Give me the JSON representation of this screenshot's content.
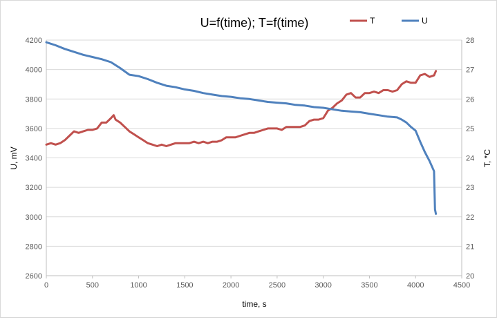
{
  "chart_data": {
    "type": "line",
    "title": "U=f(time);  T=f(time)",
    "xlabel": "time, s",
    "ylabel_left": "U, mV",
    "ylabel_right": "T, *C",
    "xlim": [
      0,
      4500
    ],
    "ylim_left": [
      2600,
      4200
    ],
    "ylim_right": [
      20,
      28
    ],
    "x_ticks": [
      "0",
      "500",
      "1000",
      "1500",
      "2000",
      "2500",
      "3000",
      "3500",
      "4000",
      "4500"
    ],
    "y_left_ticks": [
      "2600",
      "2800",
      "3000",
      "3200",
      "3400",
      "3600",
      "3800",
      "4000",
      "4200"
    ],
    "y_right_ticks": [
      "20",
      "21",
      "22",
      "23",
      "24",
      "25",
      "26",
      "27",
      "28"
    ],
    "grid": "horizontal",
    "legend_position": "top-right",
    "series": [
      {
        "name": "T",
        "axis": "right",
        "color": "#c0504d",
        "x": [
          0,
          50,
          100,
          150,
          200,
          250,
          300,
          350,
          400,
          450,
          500,
          550,
          600,
          650,
          700,
          730,
          750,
          800,
          850,
          900,
          950,
          1000,
          1050,
          1100,
          1150,
          1200,
          1250,
          1300,
          1350,
          1400,
          1450,
          1500,
          1550,
          1600,
          1650,
          1700,
          1750,
          1800,
          1850,
          1900,
          1950,
          2000,
          2050,
          2100,
          2150,
          2200,
          2250,
          2300,
          2350,
          2400,
          2450,
          2500,
          2550,
          2600,
          2650,
          2700,
          2750,
          2800,
          2850,
          2900,
          2950,
          3000,
          3050,
          3100,
          3150,
          3200,
          3250,
          3300,
          3350,
          3400,
          3450,
          3500,
          3550,
          3600,
          3650,
          3700,
          3750,
          3800,
          3850,
          3900,
          3950,
          4000,
          4050,
          4100,
          4150,
          4200,
          4220
        ],
        "values": [
          24.45,
          24.5,
          24.45,
          24.5,
          24.6,
          24.75,
          24.9,
          24.85,
          24.9,
          24.95,
          24.95,
          25.0,
          25.2,
          25.2,
          25.35,
          25.45,
          25.3,
          25.2,
          25.05,
          24.9,
          24.8,
          24.7,
          24.6,
          24.5,
          24.45,
          24.4,
          24.45,
          24.4,
          24.45,
          24.5,
          24.5,
          24.5,
          24.5,
          24.55,
          24.5,
          24.55,
          24.5,
          24.55,
          24.55,
          24.6,
          24.7,
          24.7,
          24.7,
          24.75,
          24.8,
          24.85,
          24.85,
          24.9,
          24.95,
          25.0,
          25.0,
          25.0,
          24.95,
          25.05,
          25.05,
          25.05,
          25.05,
          25.1,
          25.25,
          25.3,
          25.3,
          25.35,
          25.6,
          25.7,
          25.85,
          25.95,
          26.15,
          26.2,
          26.05,
          26.05,
          26.2,
          26.2,
          26.25,
          26.2,
          26.3,
          26.3,
          26.25,
          26.3,
          26.5,
          26.6,
          26.55,
          26.55,
          26.8,
          26.85,
          26.75,
          26.8,
          26.95
        ]
      },
      {
        "name": "U",
        "axis": "left",
        "color": "#4f81bd",
        "x": [
          0,
          100,
          200,
          300,
          400,
          500,
          600,
          700,
          800,
          900,
          1000,
          1100,
          1200,
          1300,
          1400,
          1500,
          1600,
          1700,
          1800,
          1900,
          2000,
          2100,
          2200,
          2300,
          2400,
          2500,
          2600,
          2700,
          2800,
          2900,
          3000,
          3100,
          3200,
          3300,
          3400,
          3500,
          3600,
          3700,
          3800,
          3850,
          3900,
          3950,
          4000,
          4050,
          4100,
          4150,
          4200,
          4210,
          4220
        ],
        "values": [
          4185,
          4165,
          4140,
          4120,
          4100,
          4085,
          4070,
          4050,
          4010,
          3965,
          3955,
          3935,
          3910,
          3890,
          3880,
          3865,
          3855,
          3840,
          3830,
          3820,
          3815,
          3805,
          3800,
          3790,
          3780,
          3775,
          3770,
          3760,
          3755,
          3745,
          3740,
          3730,
          3720,
          3715,
          3710,
          3700,
          3690,
          3680,
          3675,
          3660,
          3640,
          3610,
          3585,
          3510,
          3440,
          3380,
          3310,
          3050,
          3020
        ]
      }
    ]
  }
}
